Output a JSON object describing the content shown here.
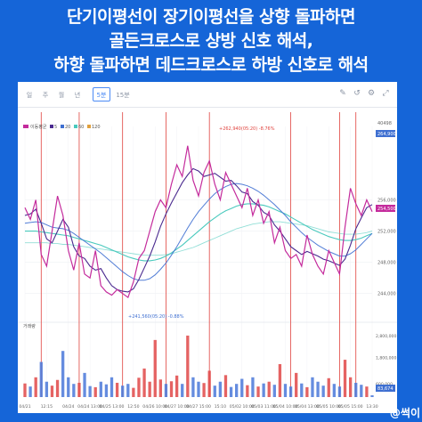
{
  "headline": {
    "line1": "단기이평선이 장기이평선을 상향 돌파하면",
    "line2": "골든크로스로 상방 신호 해석,",
    "line3": "하향 돌파하면 데드크로스로 하방 신호로 해석"
  },
  "toolbar": {
    "timeframes": [
      "일",
      "주",
      "월",
      "년",
      "5분",
      "15분"
    ],
    "active_timeframe": "5분",
    "icons": [
      "draw-icon",
      "undo-icon",
      "settings-icon",
      "fullscreen-icon"
    ]
  },
  "watermark": "@썩이",
  "colors": {
    "price": "#c42b9c",
    "ma_short": "#4a2a8f",
    "ma_mid": "#3e6fd1",
    "ma_long": "#49c9bd",
    "cross_line": "#e0433e",
    "volume_up": "#e04848",
    "volume_down": "#4a78d9"
  },
  "chart_data": {
    "type": "line",
    "x_ticks": [
      "04/21",
      "12:15",
      "04/24",
      "04/24 13:00",
      "04/25 13:00",
      "12:50",
      "04/26 10:00",
      "04/27 10:00",
      "04/27 15:00",
      "15:10",
      "05/02 10:00",
      "05/03 11:00",
      "05/04 10:00",
      "05/04 13:00",
      "05/05 10:00",
      "05/05 15:00",
      "13:30"
    ],
    "y_ticks": [
      "256,000",
      "252,000",
      "248,000",
      "244,000"
    ],
    "y_side_labels": [
      "40498",
      "264,900"
    ],
    "current_price_label": "254,500",
    "ylim": [
      241000,
      264500
    ],
    "annotation_high": "+262,940(05:20) -8.76%",
    "annotation_low": "+241,560(05:20) -0.88%",
    "legend": [
      "이동평균",
      "5",
      "20",
      "60",
      "120"
    ],
    "volume_label": "거래량",
    "volume_ticks": [
      "2,800,000",
      "1,800,000",
      "600,000"
    ],
    "volume_current": "83,674",
    "series": [
      {
        "name": "이동평균",
        "values": [
          255000,
          253500,
          256000,
          249000,
          247500,
          252000,
          256500,
          254000,
          249500,
          247000,
          250500,
          246500,
          246000,
          249500,
          245000,
          244200,
          243800,
          244500,
          244000,
          243500,
          245500,
          248500,
          249500,
          252000,
          254500,
          256000,
          255000,
          258000,
          260500,
          259000,
          262940,
          258500,
          256500,
          259500,
          261000,
          258000,
          256000,
          259500,
          258000,
          256500,
          255000,
          257500,
          254000,
          256000,
          253000,
          254500,
          250500,
          252500,
          249500,
          248500,
          249000,
          247500,
          251500,
          249000,
          247500,
          246500,
          249500,
          248000,
          246500,
          252500,
          257500,
          255500,
          254000,
          256000,
          254500
        ]
      },
      {
        "name": "5",
        "values": [
          254000,
          254200,
          254800,
          253000,
          251000,
          250500,
          252000,
          253500,
          252500,
          250000,
          248800,
          248500,
          247500,
          247000,
          247200,
          246000,
          245000,
          244500,
          244300,
          244200,
          244600,
          245800,
          247300,
          248800,
          250600,
          252600,
          254200,
          255600,
          256900,
          258200,
          259200,
          260000,
          259700,
          259000,
          259200,
          259400,
          258900,
          258400,
          258500,
          257800,
          257000,
          256800,
          255800,
          255300,
          254400,
          254000,
          252800,
          252000,
          251000,
          250000,
          249500,
          249000,
          249400,
          249100,
          248800,
          248400,
          248200,
          247900,
          247600,
          248400,
          250200,
          252300,
          253700,
          255000,
          255400
        ]
      },
      {
        "name": "20",
        "values": [
          253000,
          253100,
          253200,
          253100,
          252800,
          252500,
          252400,
          252300,
          252100,
          251700,
          251200,
          250700,
          250200,
          249700,
          249200,
          248600,
          248000,
          247400,
          246800,
          246300,
          245900,
          245700,
          245700,
          245900,
          246400,
          247100,
          247900,
          248900,
          250000,
          251200,
          252400,
          253500,
          254500,
          255300,
          256100,
          256800,
          257300,
          257700,
          258000,
          258100,
          258000,
          257800,
          257500,
          257100,
          256600,
          256000,
          255400,
          254700,
          254000,
          253200,
          252500,
          251800,
          251200,
          250700,
          250200,
          249800,
          249400,
          249100,
          248800,
          248800,
          249100,
          249600,
          250300,
          251000,
          251700
        ]
      },
      {
        "name": "60",
        "values": [
          252000,
          252000,
          252000,
          251900,
          251800,
          251700,
          251600,
          251500,
          251400,
          251200,
          251000,
          250800,
          250600,
          250400,
          250200,
          249900,
          249600,
          249300,
          249000,
          248700,
          248500,
          248300,
          248200,
          248200,
          248300,
          248500,
          248800,
          249200,
          249700,
          250200,
          250800,
          251400,
          252000,
          252600,
          253200,
          253700,
          254200,
          254600,
          254900,
          255200,
          255400,
          255500,
          255500,
          255400,
          255300,
          255100,
          254800,
          254500,
          254200,
          253800,
          253400,
          253000,
          252600,
          252200,
          251900,
          251600,
          251300,
          251100,
          250900,
          250800,
          250800,
          250900,
          251100,
          251400,
          251700
        ]
      },
      {
        "name": "120",
        "values": [
          250500,
          250500,
          250500,
          250500,
          250500,
          250400,
          250400,
          250300,
          250300,
          250200,
          250100,
          250000,
          249900,
          249800,
          249700,
          249600,
          249500,
          249400,
          249300,
          249200,
          249100,
          249000,
          248900,
          248900,
          248900,
          248900,
          249000,
          249100,
          249300,
          249500,
          249700,
          249900,
          250200,
          250500,
          250800,
          251100,
          251400,
          251700,
          252000,
          252300,
          252500,
          252700,
          252900,
          253000,
          253100,
          253200,
          253200,
          253200,
          253100,
          253000,
          252900,
          252800,
          252700,
          252500,
          252300,
          252100,
          251900,
          251800,
          251700,
          251600,
          251600,
          251600,
          251700,
          251800,
          252000
        ]
      }
    ],
    "volume": [
      620000,
      480000,
      900000,
      1600000,
      700000,
      520000,
      780000,
      2100000,
      900000,
      600000,
      650000,
      1100000,
      500000,
      450000,
      700000,
      580000,
      900000,
      650000,
      520000,
      600000,
      420000,
      880000,
      1300000,
      700000,
      2600000,
      800000,
      600000,
      720000,
      980000,
      600000,
      2800000,
      900000,
      700000,
      640000,
      1200000,
      520000,
      700000,
      1000000,
      460000,
      600000,
      830000,
      540000,
      900000,
      480000,
      620000,
      700000,
      560000,
      1500000,
      600000,
      480000,
      1100000,
      620000,
      450000,
      900000,
      700000,
      520000,
      860000,
      600000,
      480000,
      1700000,
      900000,
      650000,
      560000,
      480000,
      83674
    ],
    "cross_markers": [
      3,
      10,
      18,
      26,
      34,
      49,
      58,
      61
    ]
  }
}
